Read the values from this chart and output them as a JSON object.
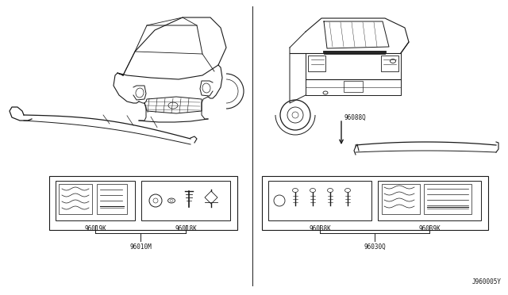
{
  "bg_color": "#ffffff",
  "line_color": "#1a1a1a",
  "text_color": "#1a1a1a",
  "left_labels": {
    "part1_code": "96019K",
    "part2_code": "96018K",
    "group_code": "96010M"
  },
  "right_labels": {
    "part1_code": "96038K",
    "part2_code": "96039K",
    "group_code": "96030Q",
    "callout": "96088Q",
    "diagram_id": "J960005Y"
  }
}
